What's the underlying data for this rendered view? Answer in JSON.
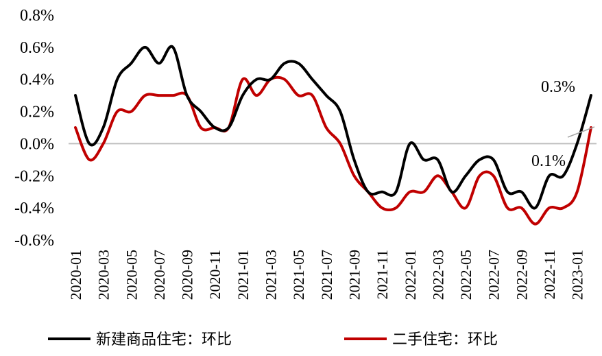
{
  "chart_data": {
    "type": "line",
    "x": [
      "2020-01",
      "2020-02",
      "2020-03",
      "2020-04",
      "2020-05",
      "2020-06",
      "2020-07",
      "2020-08",
      "2020-09",
      "2020-10",
      "2020-11",
      "2020-12",
      "2021-01",
      "2021-02",
      "2021-03",
      "2021-04",
      "2021-05",
      "2021-06",
      "2021-07",
      "2021-08",
      "2021-09",
      "2021-10",
      "2021-11",
      "2021-12",
      "2022-01",
      "2022-02",
      "2022-03",
      "2022-04",
      "2022-05",
      "2022-06",
      "2022-07",
      "2022-08",
      "2022-09",
      "2022-10",
      "2022-11",
      "2022-12",
      "2023-01",
      "2023-02"
    ],
    "x_tick_labels": [
      "2020-01",
      "2020-03",
      "2020-05",
      "2020-07",
      "2020-09",
      "2020-11",
      "2021-01",
      "2021-03",
      "2021-05",
      "2021-07",
      "2021-09",
      "2021-11",
      "2022-01",
      "2022-03",
      "2022-05",
      "2022-07",
      "2022-09",
      "2022-11",
      "2023-01"
    ],
    "y_tick_labels": [
      "0.8%",
      "0.6%",
      "0.4%",
      "0.2%",
      "0.0%",
      "-0.2%",
      "-0.4%",
      "-0.6%"
    ],
    "ylim": [
      -0.6,
      0.8
    ],
    "y_unit": "%",
    "series": [
      {
        "name": "新建商品住宅：环比",
        "color": "#000000",
        "values": [
          0.3,
          0.0,
          0.1,
          0.4,
          0.5,
          0.6,
          0.5,
          0.6,
          0.3,
          0.2,
          0.1,
          0.1,
          0.3,
          0.4,
          0.4,
          0.5,
          0.5,
          0.4,
          0.3,
          0.2,
          -0.1,
          -0.3,
          -0.3,
          -0.3,
          0.0,
          -0.1,
          -0.1,
          -0.3,
          -0.2,
          -0.1,
          -0.1,
          -0.3,
          -0.3,
          -0.4,
          -0.2,
          -0.2,
          0.0,
          0.3
        ]
      },
      {
        "name": "二手住宅：环比",
        "color": "#c00000",
        "values": [
          0.1,
          -0.1,
          0.0,
          0.2,
          0.2,
          0.3,
          0.3,
          0.3,
          0.3,
          0.1,
          0.1,
          0.1,
          0.4,
          0.3,
          0.4,
          0.4,
          0.3,
          0.3,
          0.1,
          0.0,
          -0.2,
          -0.3,
          -0.4,
          -0.4,
          -0.3,
          -0.3,
          -0.2,
          -0.3,
          -0.4,
          -0.2,
          -0.2,
          -0.4,
          -0.4,
          -0.5,
          -0.4,
          -0.4,
          -0.3,
          0.1
        ]
      }
    ],
    "annotations": [
      {
        "text": "0.3%",
        "series": 0,
        "x": "2023-02"
      },
      {
        "text": "0.1%",
        "series": 1,
        "x": "2023-02"
      }
    ],
    "legend_position": "bottom",
    "grid": false,
    "zero_line_color": "#bfbfbf"
  }
}
